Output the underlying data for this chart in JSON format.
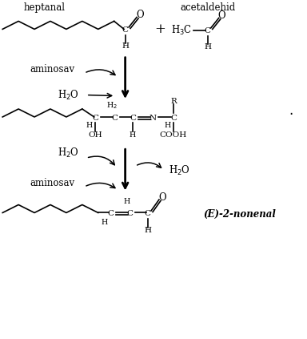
{
  "bg_color": "#ffffff",
  "fig_width": 3.84,
  "fig_height": 4.23,
  "dpi": 100,
  "heptanal_label": "heptanal",
  "acetaldehid_label": "acetaldehid",
  "aminosav1": "aminosav",
  "aminosav2": "aminosav",
  "product_label": "(E)-2-nonenal",
  "plus_sign": "+"
}
